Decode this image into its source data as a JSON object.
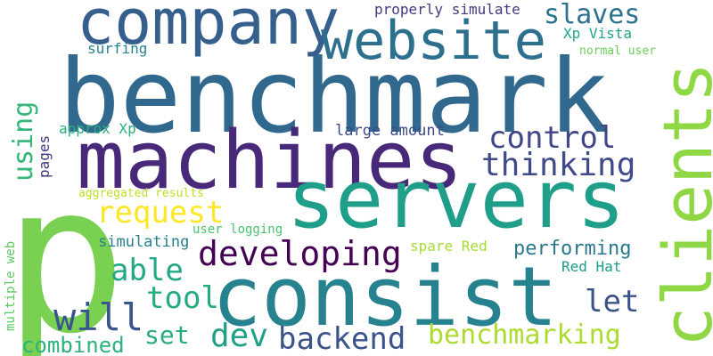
{
  "words": [
    {
      "text": "p",
      "color": "#7ad151"
    },
    {
      "text": "benchmark",
      "color": "#31688e"
    },
    {
      "text": "servers",
      "color": "#1f9e89"
    },
    {
      "text": "machines",
      "color": "#482878"
    },
    {
      "text": "consist",
      "color": "#26828e"
    },
    {
      "text": "clients",
      "color": "#8fd744"
    },
    {
      "text": "website",
      "color": "#2d708e"
    },
    {
      "text": "company",
      "color": "#355f8d"
    },
    {
      "text": "developing",
      "color": "#440154"
    },
    {
      "text": "backend",
      "color": "#3b528b"
    },
    {
      "text": "benchmarking",
      "color": "#addc30"
    },
    {
      "text": "request",
      "color": "#fde725"
    },
    {
      "text": "thinking",
      "color": "#3e4a89"
    },
    {
      "text": "control",
      "color": "#404688"
    },
    {
      "text": "slaves",
      "color": "#2c728e"
    },
    {
      "text": "able",
      "color": "#22a884"
    },
    {
      "text": "will",
      "color": "#39568c"
    },
    {
      "text": "tool",
      "color": "#25ab82"
    },
    {
      "text": "set",
      "color": "#27ad81"
    },
    {
      "text": "dev",
      "color": "#1fa187"
    },
    {
      "text": "let",
      "color": "#3b528b"
    },
    {
      "text": "performing",
      "color": "#2a788e"
    },
    {
      "text": "using",
      "color": "#35b779"
    },
    {
      "text": "combined",
      "color": "#2db27d"
    },
    {
      "text": "large amount",
      "color": "#3e4989"
    },
    {
      "text": "properly simulate",
      "color": "#453781"
    },
    {
      "text": "Xp Vista",
      "color": "#20a386"
    },
    {
      "text": "normal user",
      "color": "#6ece58"
    },
    {
      "text": "surfing",
      "color": "#26828e"
    },
    {
      "text": "approx Xp",
      "color": "#29af7f"
    },
    {
      "text": "pages",
      "color": "#46327e"
    },
    {
      "text": "aggregated results",
      "color": "#bddf26"
    },
    {
      "text": "user logging",
      "color": "#4ac16d"
    },
    {
      "text": "simulating",
      "color": "#277f8e"
    },
    {
      "text": "spare Red",
      "color": "#a5db36"
    },
    {
      "text": "Red Hat",
      "color": "#1e9c89"
    },
    {
      "text": "multiple web",
      "color": "#5ec962"
    }
  ]
}
